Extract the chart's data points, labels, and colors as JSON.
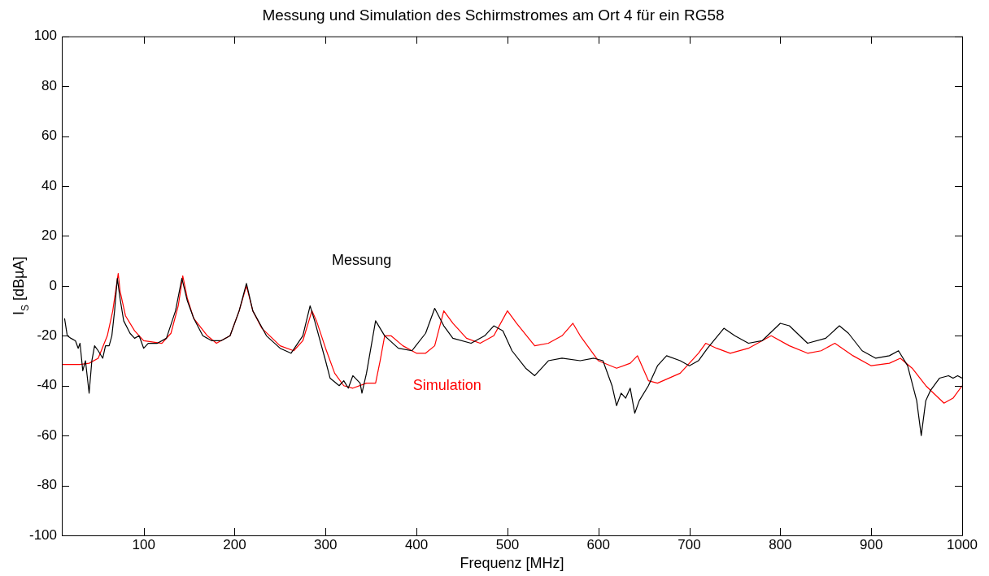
{
  "chart_data": {
    "type": "line",
    "title": "Messung und Simulation des Schirmstromes am Ort 4 für ein RG58",
    "xlabel": "Frequenz [MHz]",
    "ylabel": "I$_{S}$ [dBµA]",
    "xlim": [
      10,
      1000
    ],
    "xticks": [
      100,
      200,
      300,
      400,
      500,
      600,
      700,
      800,
      900,
      1000
    ],
    "ylim": [
      -100,
      100
    ],
    "yticks": [
      -100,
      -80,
      -60,
      -40,
      -20,
      0,
      20,
      40,
      60,
      80,
      100
    ],
    "grid": false,
    "legend": false,
    "marker": "none",
    "line_style": "solid",
    "series": [
      {
        "name": "Messung",
        "color": "#000000",
        "x": [
          13,
          16,
          20,
          25,
          28,
          30,
          33,
          36,
          40,
          43,
          46,
          50,
          55,
          58,
          62,
          65,
          68,
          71,
          74,
          78,
          85,
          90,
          95,
          100,
          105,
          115,
          125,
          135,
          142,
          148,
          155,
          165,
          175,
          185,
          195,
          205,
          213,
          220,
          235,
          250,
          262,
          275,
          283,
          288,
          300,
          305,
          315,
          320,
          325,
          330,
          338,
          340,
          345,
          355,
          365,
          380,
          395,
          410,
          420,
          430,
          440,
          460,
          475,
          485,
          495,
          505,
          520,
          530,
          545,
          560,
          580,
          595,
          605,
          615,
          620,
          625,
          630,
          635,
          640,
          645,
          655,
          665,
          675,
          690,
          700,
          710,
          720,
          738,
          750,
          765,
          780,
          800,
          810,
          830,
          850,
          865,
          875,
          890,
          905,
          920,
          930,
          940,
          950,
          955,
          960,
          965,
          975,
          985,
          990,
          995,
          1000
        ],
        "values": [
          -13,
          -20,
          -21,
          -22,
          -25,
          -23,
          -34,
          -30,
          -43,
          -30,
          -24,
          -26,
          -29,
          -24,
          -24,
          -20,
          -10,
          3,
          -5,
          -14,
          -19,
          -21,
          -20,
          -25,
          -23,
          -23,
          -21,
          -10,
          3,
          -6,
          -13,
          -20,
          -22,
          -22,
          -20,
          -10,
          1,
          -10,
          -20,
          -25,
          -27,
          -20,
          -8,
          -14,
          -30,
          -37,
          -40,
          -38,
          -41,
          -36,
          -39,
          -43,
          -35,
          -14,
          -20,
          -25,
          -26,
          -19,
          -9,
          -16,
          -21,
          -23,
          -20,
          -16,
          -18,
          -26,
          -33,
          -36,
          -30,
          -29,
          -30,
          -29,
          -30,
          -40,
          -48,
          -43,
          -45,
          -41,
          -51,
          -46,
          -40,
          -32,
          -28,
          -30,
          -32,
          -30,
          -25,
          -17,
          -20,
          -23,
          -22,
          -15,
          -16,
          -23,
          -21,
          -16,
          -19,
          -26,
          -29,
          -28,
          -26,
          -32,
          -46,
          -60,
          -46,
          -42,
          -37,
          -36,
          -37,
          -36,
          -37
        ]
      },
      {
        "name": "Simulation",
        "color": "#ff0000",
        "x": [
          10,
          30,
          40,
          50,
          60,
          66,
          70,
          72,
          74,
          80,
          90,
          100,
          120,
          130,
          138,
          143,
          148,
          155,
          170,
          180,
          195,
          205,
          213,
          220,
          230,
          250,
          265,
          275,
          285,
          290,
          300,
          310,
          320,
          330,
          345,
          355,
          360,
          365,
          372,
          385,
          400,
          410,
          420,
          430,
          440,
          455,
          470,
          485,
          500,
          510,
          530,
          545,
          560,
          572,
          580,
          600,
          620,
          635,
          643,
          655,
          665,
          690,
          710,
          718,
          730,
          745,
          765,
          790,
          810,
          830,
          845,
          860,
          880,
          900,
          920,
          932,
          945,
          960,
          980,
          990,
          1000
        ],
        "values": [
          -31.5,
          -31.5,
          -31,
          -29,
          -20,
          -10,
          0,
          5,
          -2,
          -12,
          -18,
          -22,
          -23,
          -19,
          -8,
          4,
          -5,
          -13,
          -20,
          -23,
          -20,
          -10,
          0,
          -10,
          -17,
          -24,
          -26,
          -22,
          -10,
          -14,
          -25,
          -35,
          -40,
          -41,
          -39,
          -39,
          -30,
          -20,
          -20,
          -24,
          -27,
          -27,
          -24,
          -10,
          -15,
          -21,
          -23,
          -20,
          -10,
          -15,
          -24,
          -23,
          -20,
          -15,
          -20,
          -30,
          -33,
          -31,
          -28,
          -38,
          -39,
          -35,
          -27,
          -23,
          -25,
          -27,
          -25,
          -20,
          -24,
          -27,
          -26,
          -23,
          -28,
          -32,
          -31,
          -29,
          -33,
          -40,
          -47,
          -45,
          -40
        ]
      }
    ]
  }
}
